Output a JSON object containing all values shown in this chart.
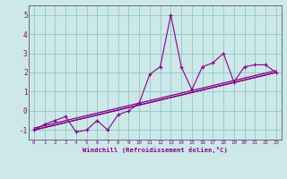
{
  "xlabel": "Windchill (Refroidissement éolien,°C)",
  "bg_color": "#cce8e8",
  "line_color": "#880088",
  "grid_color": "#99cccc",
  "x_data": [
    0,
    1,
    2,
    3,
    4,
    5,
    6,
    7,
    8,
    9,
    10,
    11,
    12,
    13,
    14,
    15,
    16,
    17,
    18,
    19,
    20,
    21,
    22,
    23
  ],
  "y_main": [
    -1.0,
    -0.7,
    -0.5,
    -0.3,
    -1.1,
    -1.0,
    -0.5,
    -1.0,
    -0.2,
    0.0,
    0.4,
    1.9,
    2.3,
    5.0,
    2.3,
    1.1,
    2.3,
    2.5,
    3.0,
    1.5,
    2.3,
    2.4,
    2.4,
    2.0
  ],
  "xlim": [
    -0.5,
    23.5
  ],
  "ylim": [
    -1.5,
    5.5
  ],
  "yticks": [
    -1,
    0,
    1,
    2,
    3,
    4,
    5
  ],
  "xticks": [
    0,
    1,
    2,
    3,
    4,
    5,
    6,
    7,
    8,
    9,
    10,
    11,
    12,
    13,
    14,
    15,
    16,
    17,
    18,
    19,
    20,
    21,
    22,
    23
  ],
  "reg1": [
    -1.0,
    2.0
  ],
  "reg2": [
    -0.95,
    2.05
  ],
  "reg3": [
    -1.0,
    2.0
  ]
}
